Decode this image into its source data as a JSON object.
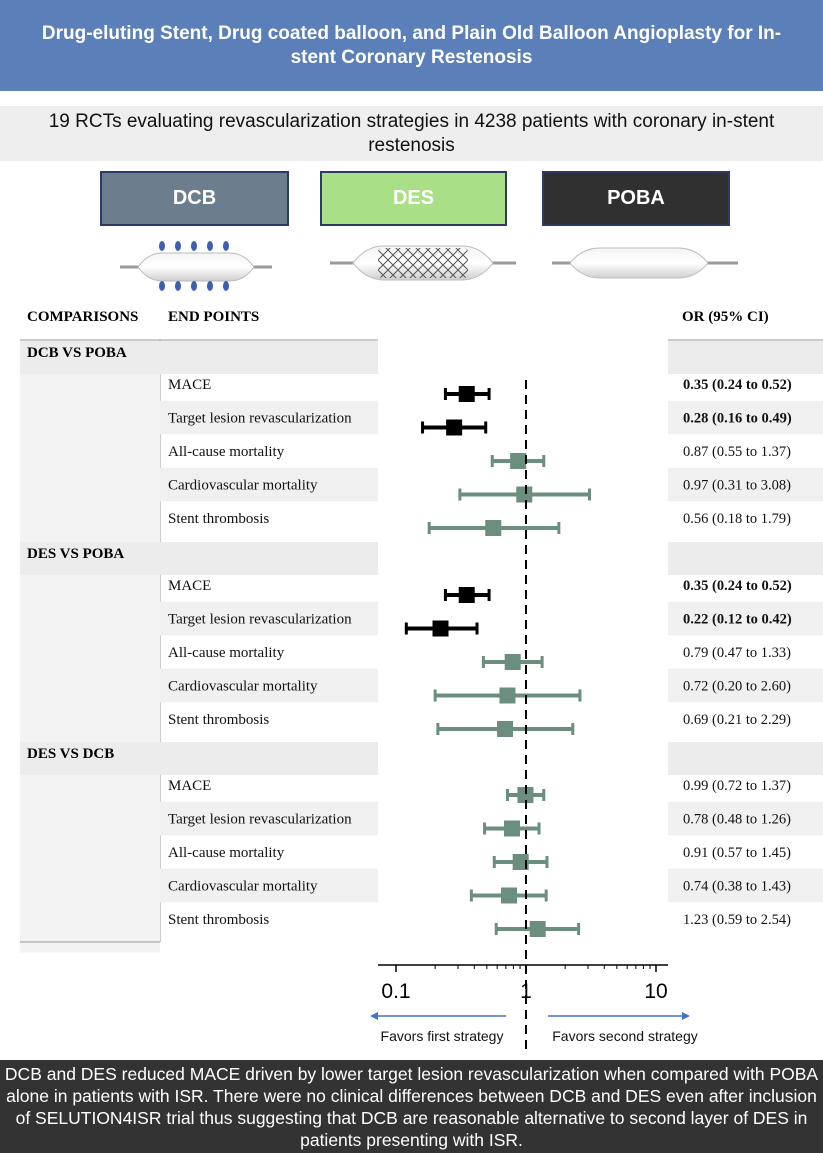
{
  "header": {
    "title": "Drug-eluting Stent, Drug coated balloon, and Plain Old Balloon Angioplasty for In-stent Coronary Restenosis"
  },
  "subtitle": "19 RCTs evaluating revascularization strategies in 4238 patients with coronary in-stent restenosis",
  "strategies": [
    {
      "label": "DCB",
      "color": "#6c7d8e"
    },
    {
      "label": "DES",
      "color": "#a9df86"
    },
    {
      "label": "POBA",
      "color": "#303030"
    }
  ],
  "table_headers": {
    "comparisons": "COMPARISONS",
    "end_points": "END POINTS",
    "or_ci": "OR (95% CI)"
  },
  "colors": {
    "significant": "#000000",
    "nonsignificant": "#6b8e7f",
    "arrow": "#4472c4"
  },
  "chart_data": {
    "type": "forest",
    "x_scale": "log",
    "xlim": [
      0.1,
      10
    ],
    "x_ticks": [
      "0.1",
      "1",
      "10"
    ],
    "reference_line": 1,
    "favors_left": "Favors first strategy",
    "favors_right": "Favors second strategy",
    "groups": [
      {
        "name": "DCB VS POBA",
        "rows": [
          {
            "endpoint": "MACE",
            "or": 0.35,
            "lo": 0.24,
            "hi": 0.52,
            "label": "0.35 (0.24 to 0.52)",
            "significant": true
          },
          {
            "endpoint": "Target lesion revascularization",
            "or": 0.28,
            "lo": 0.16,
            "hi": 0.49,
            "label": "0.28 (0.16 to 0.49)",
            "significant": true
          },
          {
            "endpoint": "All-cause mortality",
            "or": 0.87,
            "lo": 0.55,
            "hi": 1.37,
            "label": "0.87 (0.55 to 1.37)",
            "significant": false
          },
          {
            "endpoint": "Cardiovascular mortality",
            "or": 0.97,
            "lo": 0.31,
            "hi": 3.08,
            "label": "0.97 (0.31 to 3.08)",
            "significant": false
          },
          {
            "endpoint": "Stent thrombosis",
            "or": 0.56,
            "lo": 0.18,
            "hi": 1.79,
            "label": "0.56 (0.18 to 1.79)",
            "significant": false
          }
        ]
      },
      {
        "name": "DES VS POBA",
        "rows": [
          {
            "endpoint": "MACE",
            "or": 0.35,
            "lo": 0.24,
            "hi": 0.52,
            "label": "0.35 (0.24 to 0.52)",
            "significant": true
          },
          {
            "endpoint": "Target lesion revascularization",
            "or": 0.22,
            "lo": 0.12,
            "hi": 0.42,
            "label": "0.22 (0.12 to 0.42)",
            "significant": true
          },
          {
            "endpoint": "All-cause mortality",
            "or": 0.79,
            "lo": 0.47,
            "hi": 1.33,
            "label": "0.79 (0.47 to 1.33)",
            "significant": false
          },
          {
            "endpoint": "Cardiovascular mortality",
            "or": 0.72,
            "lo": 0.2,
            "hi": 2.6,
            "label": "0.72 (0.20 to 2.60)",
            "significant": false
          },
          {
            "endpoint": "Stent thrombosis",
            "or": 0.69,
            "lo": 0.21,
            "hi": 2.29,
            "label": "0.69 (0.21 to 2.29)",
            "significant": false
          }
        ]
      },
      {
        "name": "DES VS DCB",
        "rows": [
          {
            "endpoint": "MACE",
            "or": 0.99,
            "lo": 0.72,
            "hi": 1.37,
            "label": "0.99 (0.72 to 1.37)",
            "significant": false
          },
          {
            "endpoint": "Target lesion revascularization",
            "or": 0.78,
            "lo": 0.48,
            "hi": 1.26,
            "label": "0.78 (0.48 to 1.26)",
            "significant": false
          },
          {
            "endpoint": "All-cause mortality",
            "or": 0.91,
            "lo": 0.57,
            "hi": 1.45,
            "label": "0.91 (0.57 to 1.45)",
            "significant": false
          },
          {
            "endpoint": "Cardiovascular mortality",
            "or": 0.74,
            "lo": 0.38,
            "hi": 1.43,
            "label": "0.74 (0.38 to 1.43)",
            "significant": false
          },
          {
            "endpoint": "Stent thrombosis",
            "or": 1.23,
            "lo": 0.59,
            "hi": 2.54,
            "label": "1.23 (0.59 to 2.54)",
            "significant": false
          }
        ]
      }
    ]
  },
  "caption": "DCB and DES reduced MACE driven by lower target lesion revascularization when compared with POBA alone in patients with ISR. There were no clinical differences between DCB and DES even after inclusion of SELUTION4ISR trial thus suggesting that DCB are reasonable alternative to second layer of DES in patients presenting with ISR."
}
